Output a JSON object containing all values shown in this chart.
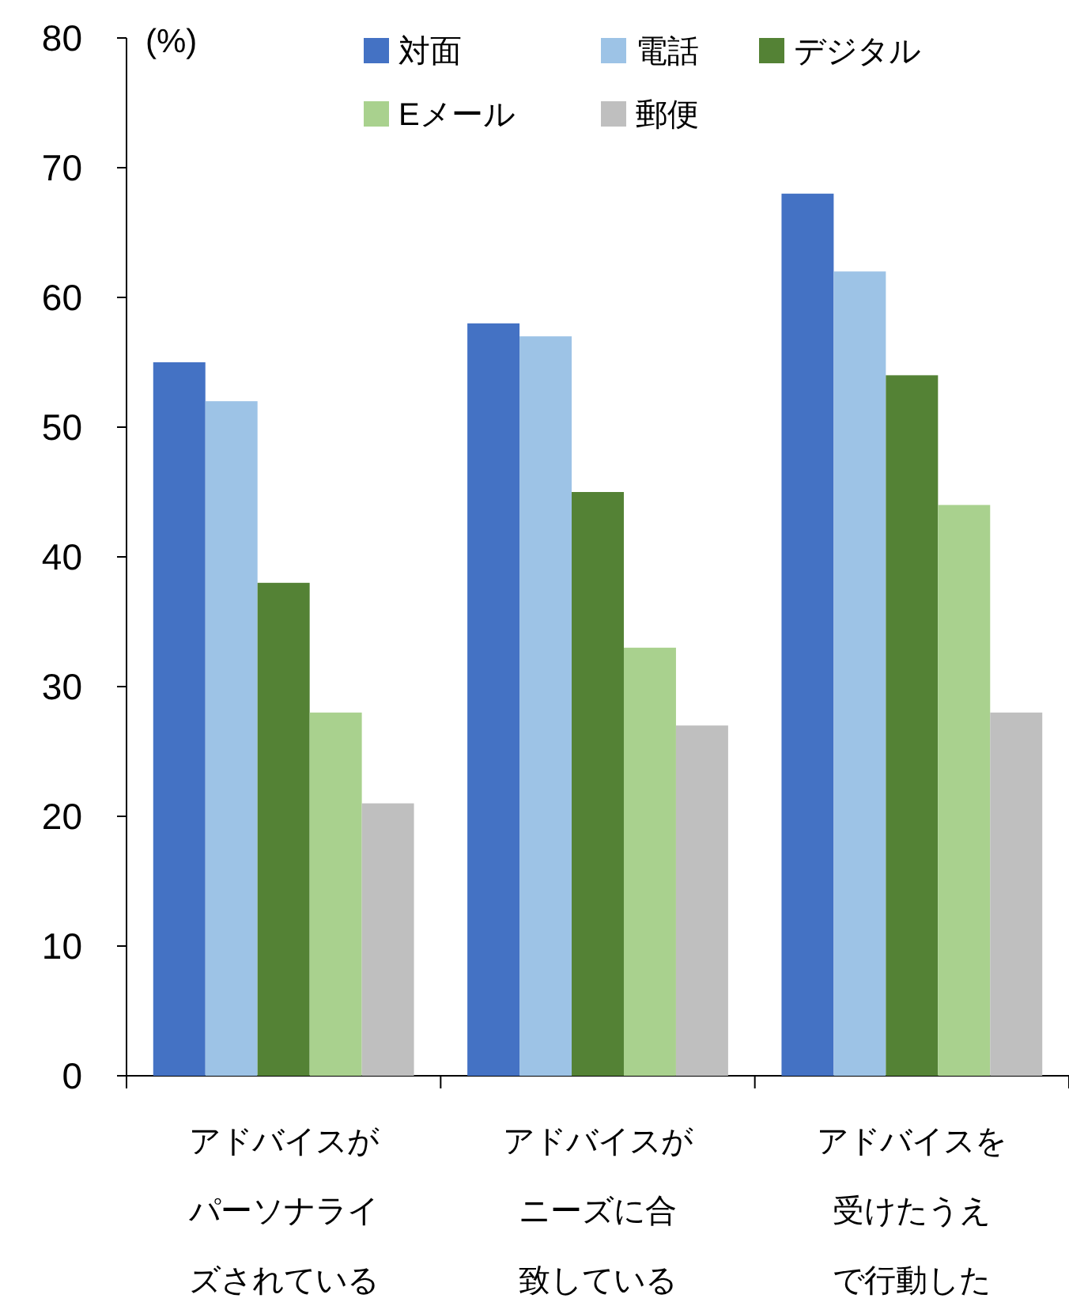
{
  "chart_data": {
    "type": "bar",
    "ylabel": "(%)",
    "categories": [
      "アドバイスがパーソナライズされている",
      "アドバイスがニーズに合致している",
      "アドバイスを受けたうえで行動した"
    ],
    "series": [
      {
        "name": "対面",
        "color": "#4472c4",
        "values": [
          55,
          58,
          68
        ]
      },
      {
        "name": "電話",
        "color": "#9dc3e6",
        "values": [
          52,
          57,
          62
        ]
      },
      {
        "name": "デジタル",
        "color": "#548235",
        "values": [
          38,
          45,
          54
        ]
      },
      {
        "name": "Eメール",
        "color": "#a9d18e",
        "values": [
          28,
          33,
          44
        ]
      },
      {
        "name": "郵便",
        "color": "#bfbfbf",
        "values": [
          21,
          27,
          28
        ]
      }
    ],
    "ylim": [
      0,
      80
    ],
    "yticks": [
      0,
      10,
      20,
      30,
      40,
      50,
      60,
      70,
      80
    ],
    "legend": "top"
  }
}
